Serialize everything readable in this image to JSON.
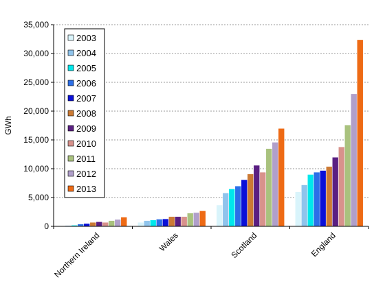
{
  "chart_data": {
    "type": "bar",
    "ylabel": "GWh",
    "ylim": [
      0,
      35000
    ],
    "yticks": [
      0,
      5000,
      10000,
      15000,
      20000,
      25000,
      30000,
      35000
    ],
    "ytick_labels": [
      "0",
      "5,000",
      "10,000",
      "15,000",
      "20,000",
      "25,000",
      "30,000",
      "35,000"
    ],
    "grid": "horizontal dashed",
    "legend_position": "top-left",
    "categories": [
      "Northern Ireland",
      "Wales",
      "Scotland",
      "England"
    ],
    "series": [
      {
        "name": "2003",
        "color": "#d9f4fb",
        "values": [
          100,
          700,
          3700,
          6000
        ]
      },
      {
        "name": "2004",
        "color": "#8fc4ec",
        "values": [
          150,
          1000,
          5800,
          7200
        ]
      },
      {
        "name": "2005",
        "color": "#00e8ec",
        "values": [
          200,
          1100,
          6500,
          9000
        ]
      },
      {
        "name": "2006",
        "color": "#2c6fe8",
        "values": [
          400,
          1250,
          7000,
          9400
        ]
      },
      {
        "name": "2007",
        "color": "#0a10d8",
        "values": [
          500,
          1300,
          8100,
          9700
        ]
      },
      {
        "name": "2008",
        "color": "#cc7a34",
        "values": [
          700,
          1700,
          9100,
          10400
        ]
      },
      {
        "name": "2009",
        "color": "#5a1f82",
        "values": [
          800,
          1700,
          10600,
          12000
        ]
      },
      {
        "name": "2010",
        "color": "#d8928c",
        "values": [
          700,
          1700,
          9400,
          13800
        ]
      },
      {
        "name": "2011",
        "color": "#a9c27e",
        "values": [
          1000,
          2300,
          13500,
          17600
        ]
      },
      {
        "name": "2012",
        "color": "#b09fca",
        "values": [
          1200,
          2400,
          14600,
          23000
        ]
      },
      {
        "name": "2013",
        "color": "#ee6a14",
        "values": [
          1600,
          2700,
          17000,
          32400
        ]
      }
    ]
  }
}
